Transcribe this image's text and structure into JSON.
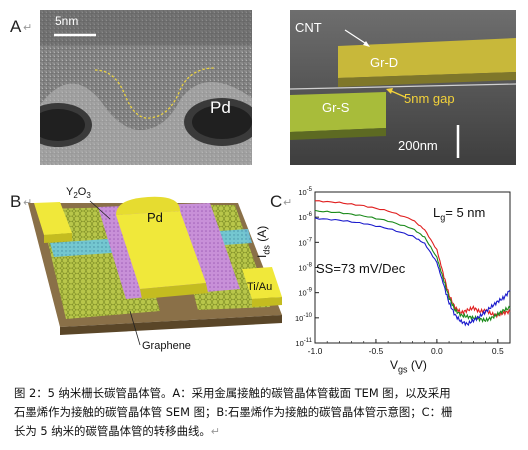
{
  "panels": {
    "a": {
      "letter": "A",
      "return_mark": "↵",
      "scale_bar": "5nm",
      "label_metal": "Pd"
    },
    "b_sem": {
      "label_cnt": "CNT",
      "label_drain": "Gr-D",
      "label_source": "Gr-S",
      "label_gap": "5nm gap",
      "scale_bar": "200nm"
    },
    "b": {
      "letter": "B",
      "return_mark": "↵",
      "label_oxide_main": "Y",
      "label_oxide_sub1": "2",
      "label_oxide_mid": "O",
      "label_oxide_sub2": "3",
      "label_gate": "Pd",
      "label_contact": "Ti/Au",
      "label_channel": "Graphene"
    },
    "c": {
      "letter": "C",
      "return_mark": "↵"
    }
  },
  "chart_data": {
    "type": "line",
    "xlabel_main": "V",
    "xlabel_sub": "gs",
    "xlabel_unit": " (V)",
    "ylabel_main": "I",
    "ylabel_sub": "ds",
    "ylabel_unit": " (A)",
    "xlim": [
      -1.0,
      0.6
    ],
    "ylim_log10": [
      -11,
      -5
    ],
    "x_ticks": [
      "-1.0",
      "-0.5",
      "0.0",
      "0.5"
    ],
    "y_ticks": [
      {
        "base": "10",
        "exp": "-5"
      },
      {
        "base": "10",
        "exp": "-6"
      },
      {
        "base": "10",
        "exp": "-7"
      },
      {
        "base": "10",
        "exp": "-8"
      },
      {
        "base": "10",
        "exp": "-9"
      },
      {
        "base": "10",
        "exp": "-10"
      },
      {
        "base": "10",
        "exp": "-11"
      }
    ],
    "annotation_lg_main": "L",
    "annotation_lg_sub": "g",
    "annotation_lg_value": "= 5 nm",
    "annotation_ss": "SS=73 mV/Dec",
    "series": [
      {
        "color": "#e02020",
        "x": [
          -1.0,
          -0.8,
          -0.6,
          -0.4,
          -0.2,
          -0.1,
          0.0,
          0.05,
          0.1,
          0.15,
          0.2,
          0.25,
          0.3,
          0.35,
          0.4,
          0.45,
          0.5,
          0.55,
          0.6
        ],
        "log10_y": [
          -5.35,
          -5.42,
          -5.55,
          -5.75,
          -6.1,
          -6.5,
          -7.3,
          -8.2,
          -9.1,
          -9.6,
          -9.8,
          -9.7,
          -9.6,
          -9.75,
          -9.7,
          -9.85,
          -9.9,
          -9.8,
          -9.75
        ]
      },
      {
        "color": "#1a8a1a",
        "x": [
          -1.0,
          -0.8,
          -0.6,
          -0.4,
          -0.2,
          -0.1,
          0.0,
          0.05,
          0.1,
          0.15,
          0.2,
          0.25,
          0.3,
          0.35,
          0.4,
          0.45,
          0.5,
          0.55,
          0.6
        ],
        "log10_y": [
          -5.75,
          -5.82,
          -5.95,
          -6.15,
          -6.45,
          -6.8,
          -7.6,
          -8.4,
          -9.2,
          -9.7,
          -9.9,
          -9.95,
          -10.0,
          -10.05,
          -10.1,
          -10.0,
          -9.85,
          -9.7,
          -9.6
        ]
      },
      {
        "color": "#1a1acc",
        "x": [
          -1.0,
          -0.8,
          -0.6,
          -0.4,
          -0.2,
          -0.1,
          0.0,
          0.05,
          0.1,
          0.15,
          0.2,
          0.25,
          0.3,
          0.35,
          0.4,
          0.45,
          0.5,
          0.55,
          0.6
        ],
        "log10_y": [
          -6.05,
          -6.12,
          -6.25,
          -6.45,
          -6.75,
          -7.05,
          -7.8,
          -8.6,
          -9.4,
          -9.9,
          -10.15,
          -10.25,
          -10.1,
          -9.95,
          -9.75,
          -9.55,
          -9.35,
          -9.2,
          -8.9
        ]
      }
    ]
  },
  "caption": {
    "line1": "图 2：5 纳米栅长碳管晶体管。A：采用金属接触的碳管晶体管截面 TEM 图，以及采用",
    "line2": "石墨烯作为接触的碳管晶体管 SEM 图；B:石墨烯作为接触的碳管晶体管示意图；C：栅",
    "line3": "长为 5 纳米的碳管晶体管的转移曲线。",
    "return_mark": "↵"
  }
}
